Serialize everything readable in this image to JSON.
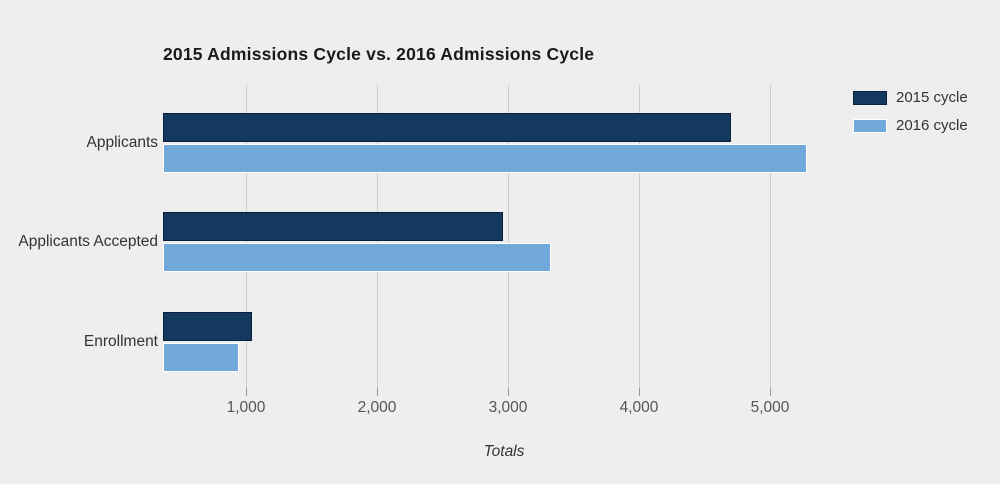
{
  "colors": {
    "background": "#eeeeee",
    "title_text": "#1a1a1a",
    "category_label_text": "#333333",
    "tick_label_text": "#555555",
    "axis_label_text": "#333333",
    "legend_label_text": "#333333",
    "gridline": "#cbcbcb",
    "tick_mark": "#999999",
    "series_2015_fill": "#14395e",
    "series_2015_border": "#0b1f3a",
    "series_2016_fill": "#6fa8d9",
    "series_2016_border": "#ffffff"
  },
  "chart_data": {
    "type": "bar",
    "orientation": "horizontal",
    "title": "2015 Admissions Cycle vs. 2016 Admissions Cycle",
    "xlabel": "Totals",
    "ylabel": "",
    "categories": [
      "Applicants",
      "Applicants Accepted",
      "Enrollment"
    ],
    "series": [
      {
        "name": "2015 cycle",
        "color": "#14395e",
        "border_color": "#0b1f3a",
        "values": [
          4700,
          2960,
          1045
        ]
      },
      {
        "name": "2016 cycle",
        "color": "#6fa8d9",
        "border_color": "#ffffff",
        "values": [
          5280,
          3330,
          950
        ]
      }
    ],
    "x_ticks": [
      {
        "value": 1000,
        "label": "1,000"
      },
      {
        "value": 2000,
        "label": "2,000"
      },
      {
        "value": 3000,
        "label": "3,000"
      },
      {
        "value": 4000,
        "label": "4,000"
      },
      {
        "value": 5000,
        "label": "5,000"
      }
    ],
    "xlim": [
      366,
      5572
    ],
    "grid": "vertical-gridlines",
    "legend_position": "top-right"
  }
}
